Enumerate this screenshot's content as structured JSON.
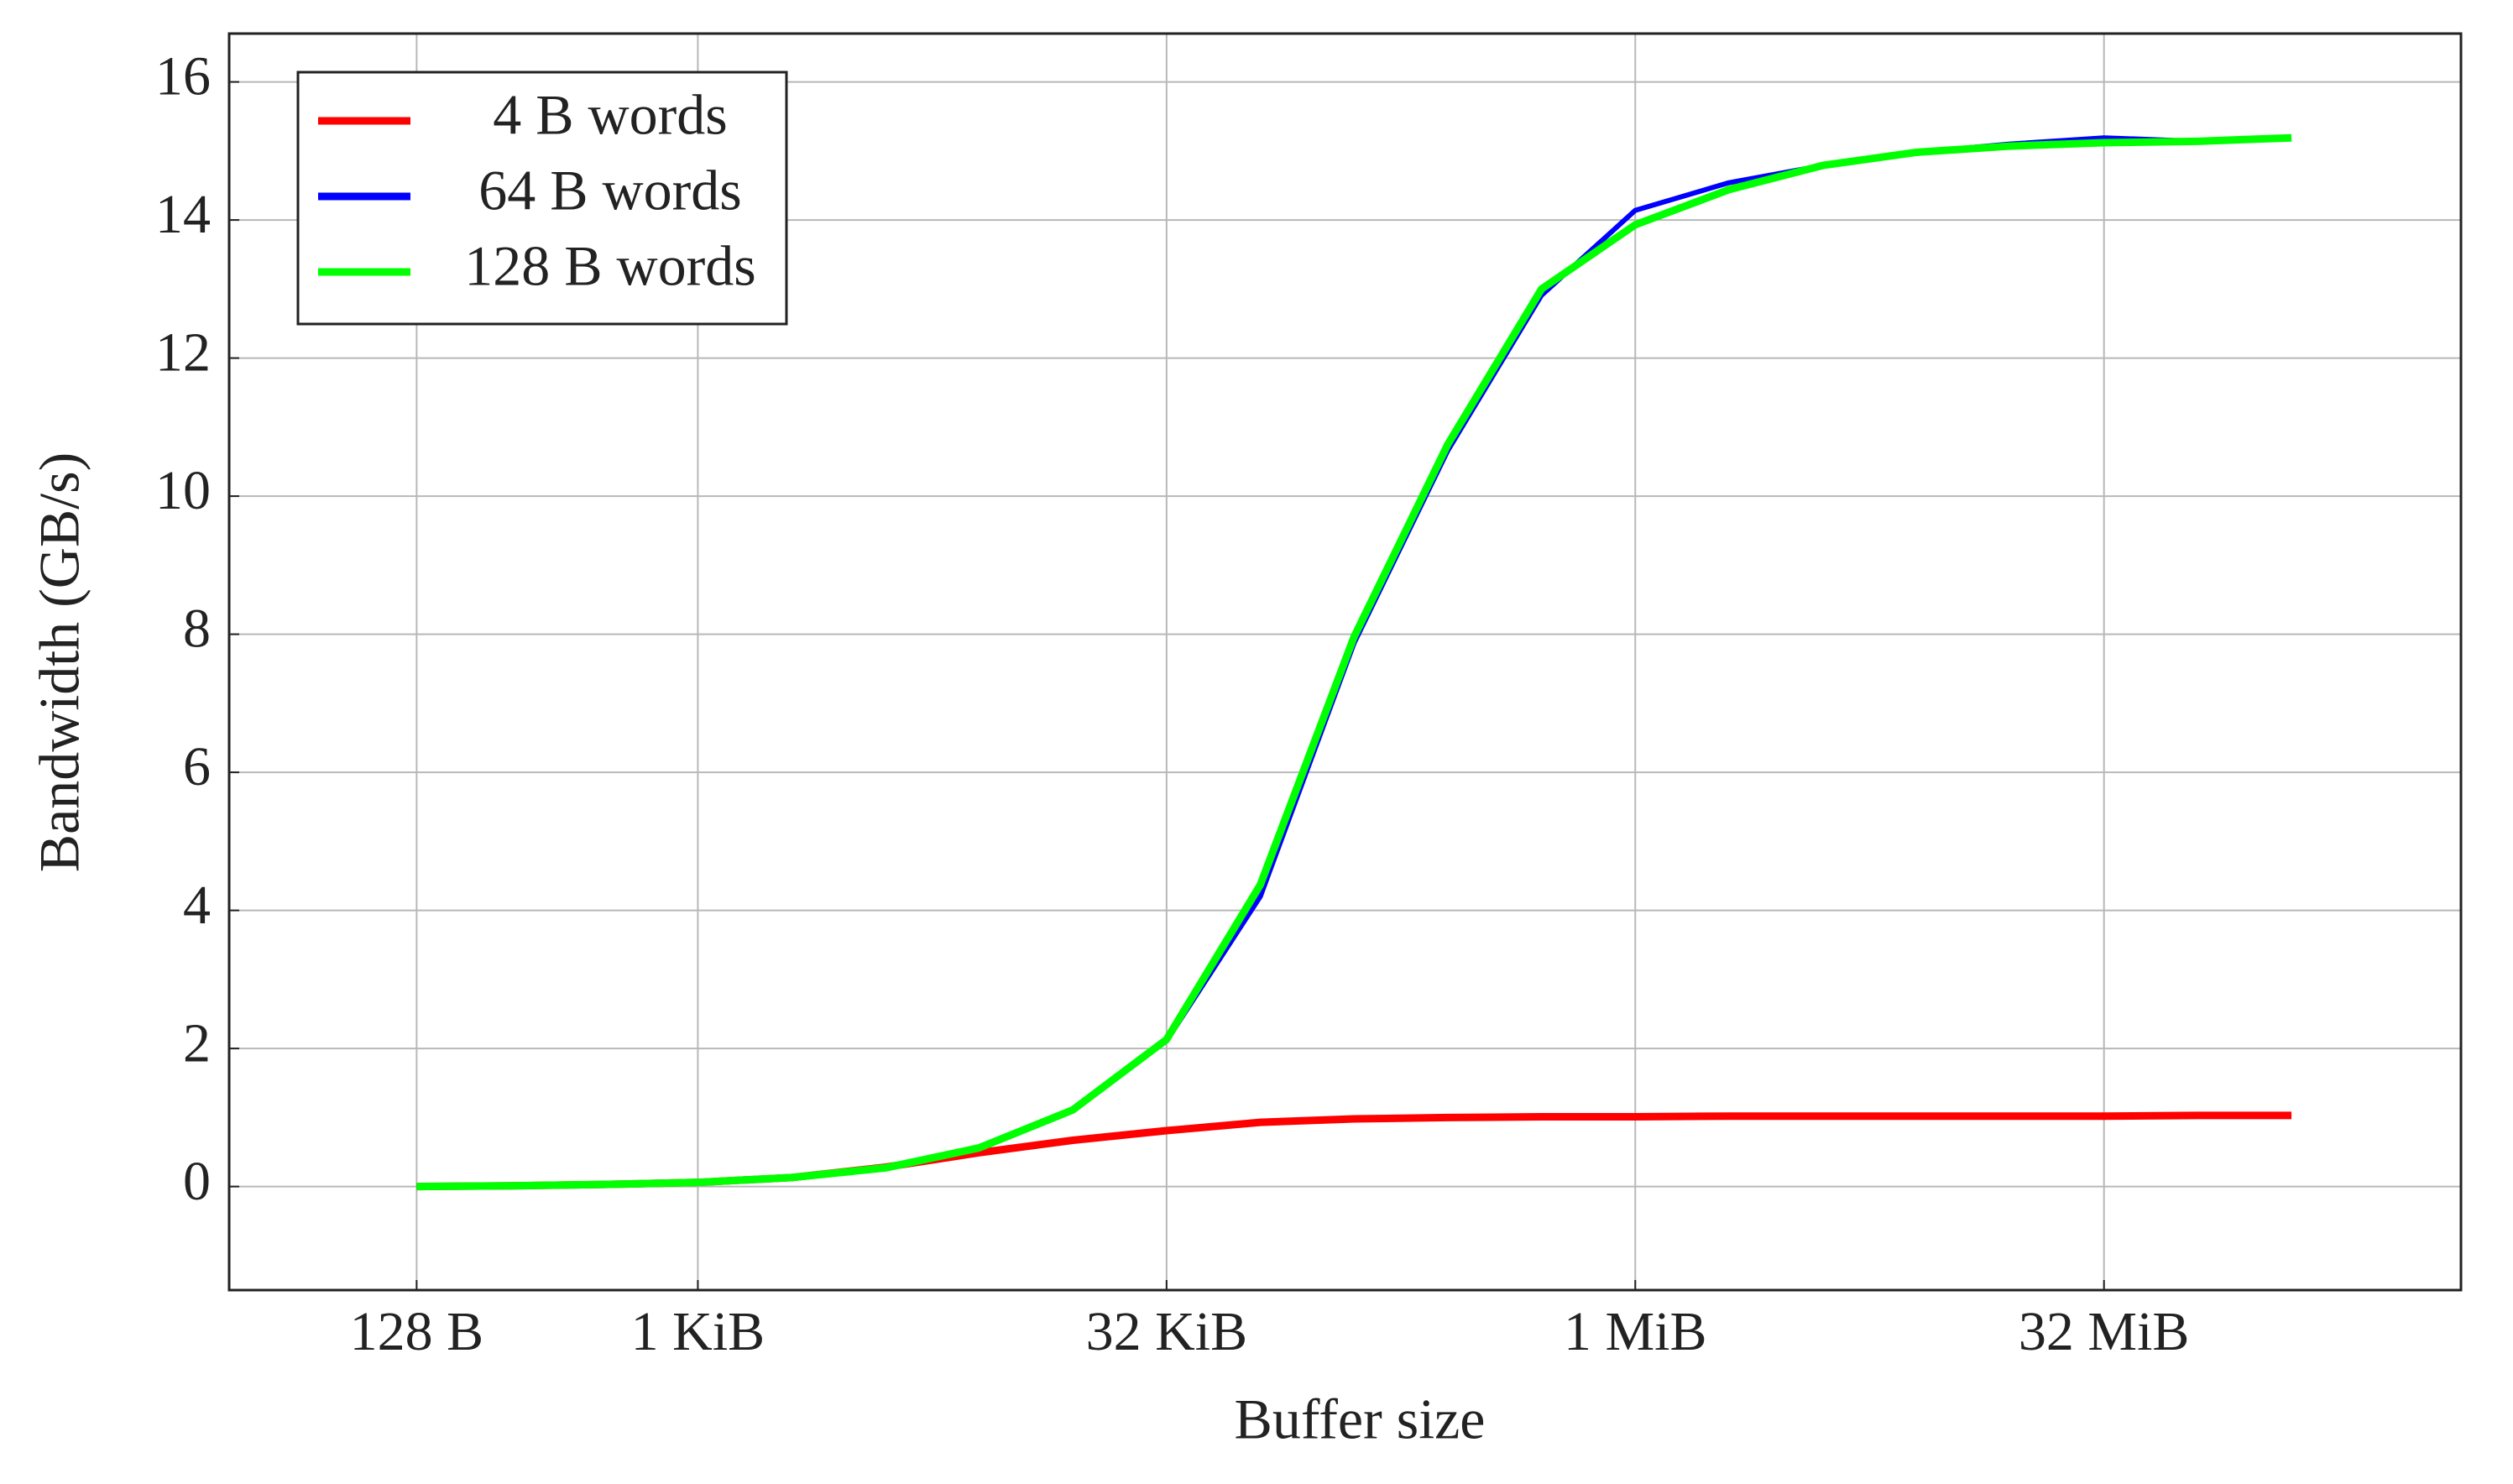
{
  "chart_data": {
    "type": "line",
    "x_label": "Buffer size",
    "y_label": "Bandwidth (GB/s)",
    "x": [
      128,
      256,
      512,
      1024,
      2048,
      4096,
      8192,
      16384,
      32768,
      65536,
      131072,
      262144,
      524288,
      1048576,
      2097152,
      4194304,
      8388608,
      16777216,
      33554432,
      67108864,
      134217728
    ],
    "series": [
      {
        "name": "4 B words",
        "color": "#ff0000",
        "values": [
          0,
          0.01,
          0.03,
          0.06,
          0.13,
          0.28,
          0.49,
          0.67,
          0.81,
          0.93,
          0.98,
          1.0,
          1.01,
          1.01,
          1.02,
          1.02,
          1.02,
          1.02,
          1.02,
          1.03,
          1.03
        ]
      },
      {
        "name": "64 B words",
        "color": "#0000ff",
        "values": [
          0,
          0.01,
          0.03,
          0.06,
          0.13,
          0.27,
          0.56,
          1.11,
          2.11,
          4.2,
          7.87,
          10.66,
          12.91,
          14.14,
          14.54,
          14.79,
          14.98,
          15.1,
          15.19,
          15.14,
          15.19
        ]
      },
      {
        "name": "128 B words",
        "color": "#00ff00",
        "values": [
          0,
          0.01,
          0.03,
          0.06,
          0.13,
          0.27,
          0.56,
          1.11,
          2.13,
          4.37,
          7.96,
          10.75,
          13.0,
          13.93,
          14.44,
          14.79,
          14.98,
          15.07,
          15.12,
          15.14,
          15.19
        ]
      }
    ],
    "x_log_base": 2,
    "xlim": [
      32,
      470000000
    ],
    "xticks": [
      {
        "value": 128,
        "label": "128 B"
      },
      {
        "value": 1024,
        "label": "1 KiB"
      },
      {
        "value": 32768,
        "label": "32 KiB"
      },
      {
        "value": 1048576,
        "label": "1 MiB"
      },
      {
        "value": 33554432,
        "label": "32 MiB"
      }
    ],
    "ylim": [
      -1.5,
      16.7
    ],
    "yticks": [
      0,
      2,
      4,
      6,
      8,
      10,
      12,
      14,
      16
    ],
    "grid": true,
    "legend": "top-left"
  }
}
